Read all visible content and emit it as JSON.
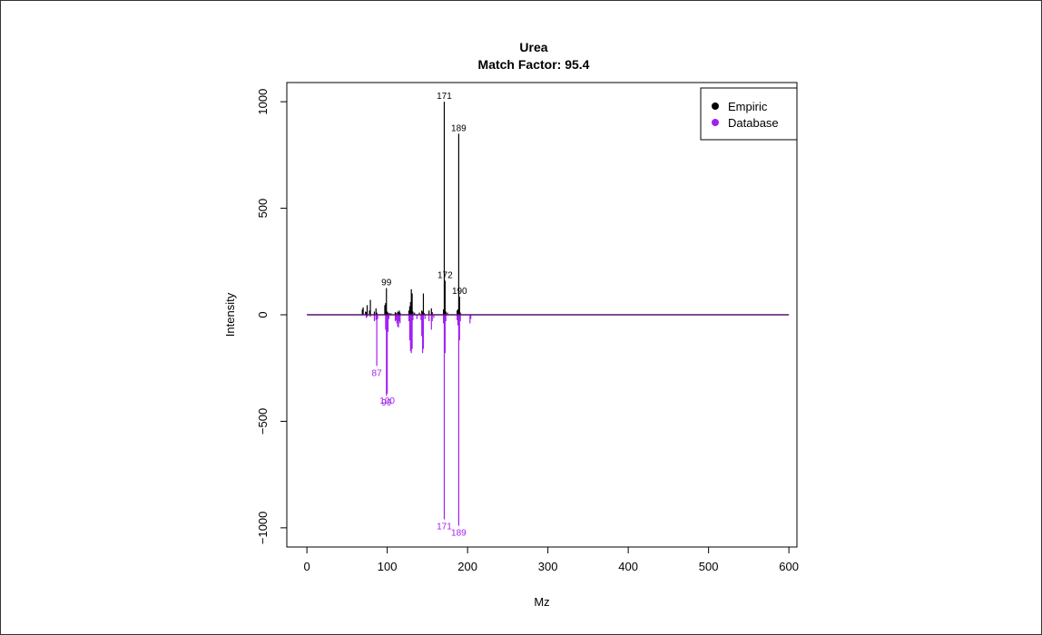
{
  "chart_data": {
    "type": "bar",
    "title": "Urea",
    "subtitle": "Match Factor: 95.4",
    "xlabel": "Mz",
    "ylabel": "Intensity",
    "xlim": [
      -25,
      610
    ],
    "ylim": [
      -1090,
      1090
    ],
    "xticks": [
      0,
      100,
      200,
      300,
      400,
      500,
      600
    ],
    "yticks": [
      -1000,
      -500,
      0,
      500,
      1000
    ],
    "legend": {
      "position": "top-right",
      "entries": [
        {
          "name": "Empiric",
          "color": "#000000"
        },
        {
          "name": "Database",
          "color": "#a020f0"
        }
      ]
    },
    "series": [
      {
        "name": "Empiric",
        "color": "#000000",
        "peaks": [
          [
            69,
            25
          ],
          [
            70,
            35
          ],
          [
            73,
            15
          ],
          [
            74,
            12
          ],
          [
            75,
            45
          ],
          [
            78,
            20
          ],
          [
            79,
            70
          ],
          [
            84,
            15
          ],
          [
            86,
            30
          ],
          [
            87,
            10
          ],
          [
            97,
            45
          ],
          [
            98,
            55
          ],
          [
            99,
            125
          ],
          [
            100,
            15
          ],
          [
            101,
            10
          ],
          [
            103,
            8
          ],
          [
            105,
            6
          ],
          [
            110,
            12
          ],
          [
            111,
            8
          ],
          [
            113,
            15
          ],
          [
            114,
            12
          ],
          [
            115,
            20
          ],
          [
            116,
            10
          ],
          [
            127,
            20
          ],
          [
            128,
            40
          ],
          [
            129,
            60
          ],
          [
            130,
            120
          ],
          [
            131,
            100
          ],
          [
            132,
            15
          ],
          [
            134,
            10
          ],
          [
            140,
            10
          ],
          [
            143,
            20
          ],
          [
            144,
            15
          ],
          [
            145,
            100
          ],
          [
            146,
            8
          ],
          [
            152,
            20
          ],
          [
            155,
            30
          ],
          [
            156,
            12
          ],
          [
            170,
            25
          ],
          [
            171,
            1000
          ],
          [
            172,
            160
          ],
          [
            173,
            15
          ],
          [
            175,
            10
          ],
          [
            187,
            20
          ],
          [
            188,
            25
          ],
          [
            189,
            850
          ],
          [
            190,
            85
          ],
          [
            191,
            10
          ]
        ],
        "labels": [
          {
            "mz": 99,
            "intensity": 125,
            "text": "99"
          },
          {
            "mz": 171,
            "intensity": 1000,
            "text": "171"
          },
          {
            "mz": 172,
            "intensity": 160,
            "text": "172"
          },
          {
            "mz": 189,
            "intensity": 850,
            "text": "189"
          },
          {
            "mz": 190,
            "intensity": 85,
            "text": "190"
          }
        ]
      },
      {
        "name": "Database",
        "color": "#a020f0",
        "peaks": [
          [
            74,
            -15
          ],
          [
            75,
            -10
          ],
          [
            79,
            -10
          ],
          [
            84,
            -30
          ],
          [
            86,
            -25
          ],
          [
            87,
            -240
          ],
          [
            88,
            -20
          ],
          [
            98,
            -70
          ],
          [
            99,
            -380
          ],
          [
            100,
            -370
          ],
          [
            101,
            -80
          ],
          [
            102,
            -20
          ],
          [
            110,
            -30
          ],
          [
            111,
            -25
          ],
          [
            112,
            -40
          ],
          [
            113,
            -55
          ],
          [
            114,
            -60
          ],
          [
            115,
            -30
          ],
          [
            116,
            -40
          ],
          [
            127,
            -30
          ],
          [
            128,
            -120
          ],
          [
            129,
            -170
          ],
          [
            130,
            -180
          ],
          [
            131,
            -160
          ],
          [
            132,
            -25
          ],
          [
            137,
            -20
          ],
          [
            142,
            -25
          ],
          [
            143,
            -100
          ],
          [
            144,
            -180
          ],
          [
            145,
            -160
          ],
          [
            147,
            -20
          ],
          [
            152,
            -30
          ],
          [
            155,
            -70
          ],
          [
            156,
            -30
          ],
          [
            158,
            -15
          ],
          [
            170,
            -40
          ],
          [
            171,
            -960
          ],
          [
            172,
            -180
          ],
          [
            173,
            -30
          ],
          [
            187,
            -25
          ],
          [
            188,
            -50
          ],
          [
            189,
            -990
          ],
          [
            190,
            -120
          ],
          [
            191,
            -30
          ],
          [
            203,
            -40
          ],
          [
            204,
            -20
          ]
        ],
        "labels": [
          {
            "mz": 87,
            "intensity": -240,
            "text": "87"
          },
          {
            "mz": 99,
            "intensity": -380,
            "text": "99"
          },
          {
            "mz": 100,
            "intensity": -370,
            "text": "100"
          },
          {
            "mz": 171,
            "intensity": -960,
            "text": "171"
          },
          {
            "mz": 189,
            "intensity": -990,
            "text": "189"
          }
        ]
      }
    ],
    "baseline": {
      "from": 0,
      "to": 600,
      "color": "#5a1070"
    }
  }
}
